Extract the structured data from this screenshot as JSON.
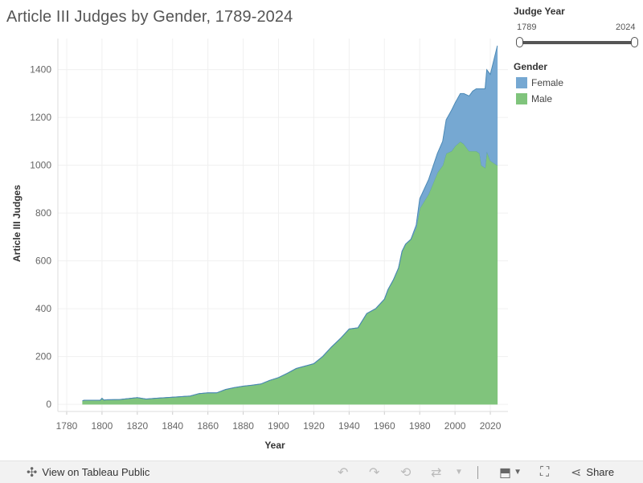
{
  "title": "Article III Judges by Gender, 1789-2024",
  "filter": {
    "title": "Judge Year",
    "min_label": "1789",
    "max_label": "2024"
  },
  "legend": {
    "title": "Gender",
    "items": [
      {
        "label": "Female",
        "color": "#76a8d2"
      },
      {
        "label": "Male",
        "color": "#80c47c"
      }
    ]
  },
  "footer": {
    "view_label": "View on Tableau Public",
    "share_label": "Share"
  },
  "chart_data": {
    "type": "area",
    "stacked": true,
    "title": "Article III Judges by Gender, 1789-2024",
    "xlabel": "Year",
    "ylabel": "Article III Judges",
    "xlim": [
      1775,
      2030
    ],
    "ylim": [
      -30,
      1530
    ],
    "xticks": [
      1780,
      1800,
      1820,
      1840,
      1860,
      1880,
      1900,
      1920,
      1940,
      1960,
      1980,
      2000,
      2020
    ],
    "yticks": [
      0,
      200,
      400,
      600,
      800,
      1000,
      1200,
      1400
    ],
    "x": [
      1789,
      1790,
      1799,
      1800,
      1801,
      1803,
      1810,
      1820,
      1825,
      1830,
      1840,
      1850,
      1855,
      1860,
      1865,
      1870,
      1875,
      1880,
      1885,
      1890,
      1895,
      1900,
      1905,
      1910,
      1915,
      1920,
      1925,
      1930,
      1935,
      1940,
      1945,
      1950,
      1955,
      1960,
      1962,
      1965,
      1968,
      1970,
      1972,
      1975,
      1978,
      1980,
      1985,
      1990,
      1993,
      1995,
      1998,
      2000,
      2003,
      2005,
      2008,
      2010,
      2012,
      2014,
      2015,
      2017,
      2018,
      2020,
      2022,
      2024
    ],
    "series": [
      {
        "name": "Male",
        "color": "#80c47c",
        "values": [
          15,
          17,
          17,
          25,
          18,
          19,
          20,
          28,
          22,
          25,
          30,
          35,
          45,
          48,
          48,
          62,
          70,
          76,
          80,
          85,
          100,
          112,
          130,
          150,
          160,
          170,
          200,
          240,
          275,
          315,
          320,
          380,
          400,
          440,
          480,
          520,
          570,
          640,
          670,
          690,
          740,
          820,
          880,
          970,
          1000,
          1050,
          1060,
          1080,
          1100,
          1090,
          1060,
          1060,
          1060,
          1050,
          1000,
          990,
          1060,
          1020,
          1010,
          1000
        ]
      },
      {
        "name": "Female",
        "color": "#76a8d2",
        "values": [
          0,
          0,
          0,
          0,
          0,
          0,
          0,
          0,
          0,
          0,
          0,
          0,
          0,
          0,
          0,
          0,
          0,
          0,
          0,
          0,
          0,
          0,
          0,
          0,
          0,
          0,
          0,
          0,
          0,
          0,
          0,
          0,
          0,
          0,
          0,
          0,
          0,
          0,
          0,
          0,
          10,
          40,
          60,
          80,
          100,
          140,
          170,
          180,
          200,
          210,
          230,
          250,
          260,
          270,
          320,
          330,
          340,
          360,
          430,
          500
        ]
      }
    ]
  }
}
